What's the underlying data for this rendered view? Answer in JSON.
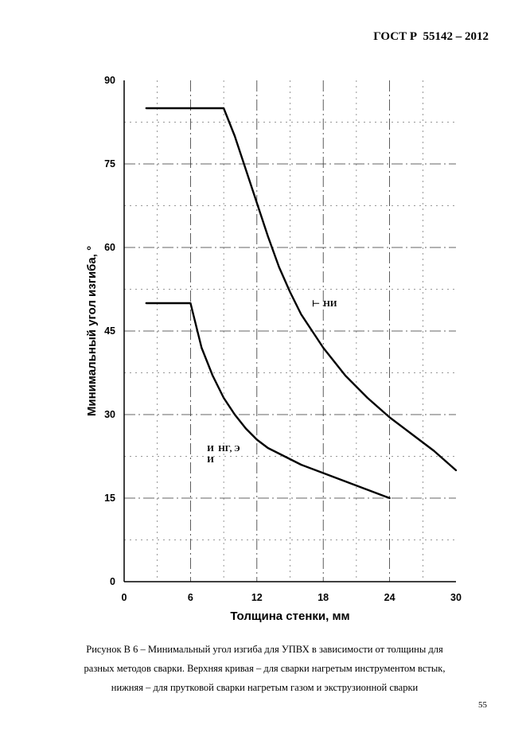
{
  "header": {
    "standard": "ГОСТ Р  55142 – 2012"
  },
  "chart_data": {
    "type": "line",
    "xlabel": "Толщина стенки, мм",
    "ylabel": "Минимальный угол изгиба, °",
    "xlim": [
      0,
      30
    ],
    "ylim": [
      0,
      90
    ],
    "x_ticks": [
      "0",
      "6",
      "12",
      "18",
      "24",
      "30"
    ],
    "y_ticks": [
      "0",
      "15",
      "30",
      "45",
      "60",
      "75",
      "90"
    ],
    "grid": true,
    "series": [
      {
        "name": "НИ",
        "points": [
          [
            2,
            85
          ],
          [
            9,
            85
          ],
          [
            10,
            80
          ],
          [
            11,
            74
          ],
          [
            12,
            68
          ],
          [
            13,
            62
          ],
          [
            14,
            56.5
          ],
          [
            15,
            52
          ],
          [
            16,
            48
          ],
          [
            17,
            45
          ],
          [
            18,
            42
          ],
          [
            19,
            39.5
          ],
          [
            20,
            37
          ],
          [
            22,
            33
          ],
          [
            24,
            29.5
          ],
          [
            26,
            26.5
          ],
          [
            28,
            23.5
          ],
          [
            30,
            20
          ]
        ]
      },
      {
        "name": "НГ, Э",
        "points": [
          [
            2,
            50
          ],
          [
            6,
            50
          ],
          [
            7,
            42
          ],
          [
            8,
            37
          ],
          [
            9,
            33
          ],
          [
            10,
            30
          ],
          [
            11,
            27.5
          ],
          [
            12,
            25.5
          ],
          [
            13,
            24
          ],
          [
            14,
            23
          ],
          [
            16,
            21
          ],
          [
            18,
            19.5
          ],
          [
            20,
            18
          ],
          [
            22,
            16.5
          ],
          [
            24,
            15
          ]
        ]
      }
    ],
    "annotations": [
      {
        "marker": "⊢",
        "text": "НИ",
        "x": 17,
        "y": 50
      },
      {
        "marker": "И",
        "text": "НГ, Э",
        "x": 7.5,
        "y": 24
      },
      {
        "marker": "И",
        "text": "",
        "x": 7.5,
        "y": 22
      }
    ]
  },
  "caption": {
    "line1": "Рисунок В 6 – Минимальный угол изгиба для УПВХ в зависимости от толщины для",
    "line2": "разных методов сварки. Верхняя кривая – для сварки нагретым инструментом встык,",
    "line3": "нижняя – для прутковой сварки нагретым газом и экструзионной сварки"
  },
  "page_number": "55"
}
